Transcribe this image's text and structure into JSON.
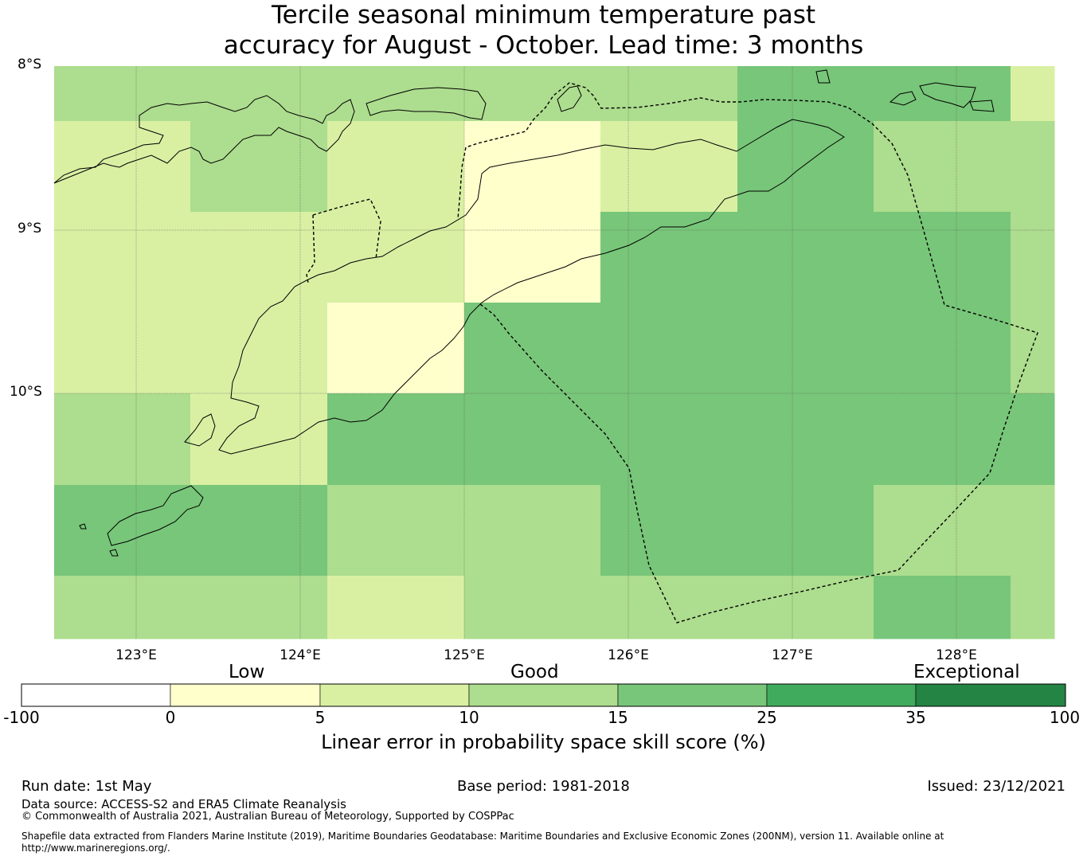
{
  "title_line1": "Tercile seasonal minimum temperature past",
  "title_line2": "accuracy for August - October. Lead time: 3 months",
  "lat_labels": [
    "8°S",
    "9°S",
    "10°S"
  ],
  "lon_labels": [
    "123°E",
    "124°E",
    "125°E",
    "126°E",
    "127°E",
    "128°E"
  ],
  "colors": {
    "c_neg": "#ffffff",
    "c_0_5": "#ffffcc",
    "c_5_10": "#d9f0a3",
    "c_10_15": "#addd8e",
    "c_15_25": "#78c679",
    "c_25_35": "#41ab5d",
    "c_35_100": "#238443"
  },
  "grid_cells": [
    [
      "c_10_15",
      "c_10_15",
      "c_10_15",
      "c_10_15",
      "c_10_15",
      "c_15_25",
      "c_15_25",
      "c_5_10"
    ],
    [
      "c_5_10",
      "c_10_15",
      "c_5_10",
      "c_0_5",
      "c_5_10",
      "c_15_25",
      "c_10_15",
      "c_10_15"
    ],
    [
      "c_5_10",
      "c_5_10",
      "c_5_10",
      "c_0_5",
      "c_15_25",
      "c_15_25",
      "c_15_25",
      "c_10_15"
    ],
    [
      "c_5_10",
      "c_5_10",
      "c_0_5",
      "c_15_25",
      "c_15_25",
      "c_15_25",
      "c_15_25",
      "c_10_15"
    ],
    [
      "c_10_15",
      "c_5_10",
      "c_15_25",
      "c_15_25",
      "c_15_25",
      "c_15_25",
      "c_15_25",
      "c_15_25"
    ],
    [
      "c_15_25",
      "c_15_25",
      "c_10_15",
      "c_10_15",
      "c_15_25",
      "c_15_25",
      "c_10_15",
      "c_10_15"
    ],
    [
      "c_10_15",
      "c_10_15",
      "c_5_10",
      "c_10_15",
      "c_10_15",
      "c_10_15",
      "c_15_25",
      "c_10_15"
    ]
  ],
  "legend": {
    "categories": [
      "Low",
      "Good",
      "Exceptional"
    ],
    "ticks": [
      "-100",
      "0",
      "5",
      "10",
      "15",
      "25",
      "35",
      "100"
    ],
    "bins": [
      "c_neg",
      "c_0_5",
      "c_5_10",
      "c_10_15",
      "c_15_25",
      "c_25_35",
      "c_35_100"
    ],
    "title": "Linear error in probability space skill score (%)"
  },
  "footer": {
    "run_date": "Run date: 1st May",
    "base_period": "Base period: 1981-2018",
    "issued": "Issued: 23/12/2021",
    "data_source": "Data source: ACCESS-S2 and ERA5 Climate Reanalysis",
    "copyright": "© Commonwealth of Australia 2021, Australian Bureau of Meteorology, Supported by COSPPac",
    "shapefile_line1": "Shapefile data extracted from Flanders Marine Institute (2019), Maritime Boundaries Geodatabase: Maritime Boundaries and Exclusive Economic Zones (200NM), version 11. Available online at",
    "shapefile_line2": "http://www.marineregions.org/."
  }
}
